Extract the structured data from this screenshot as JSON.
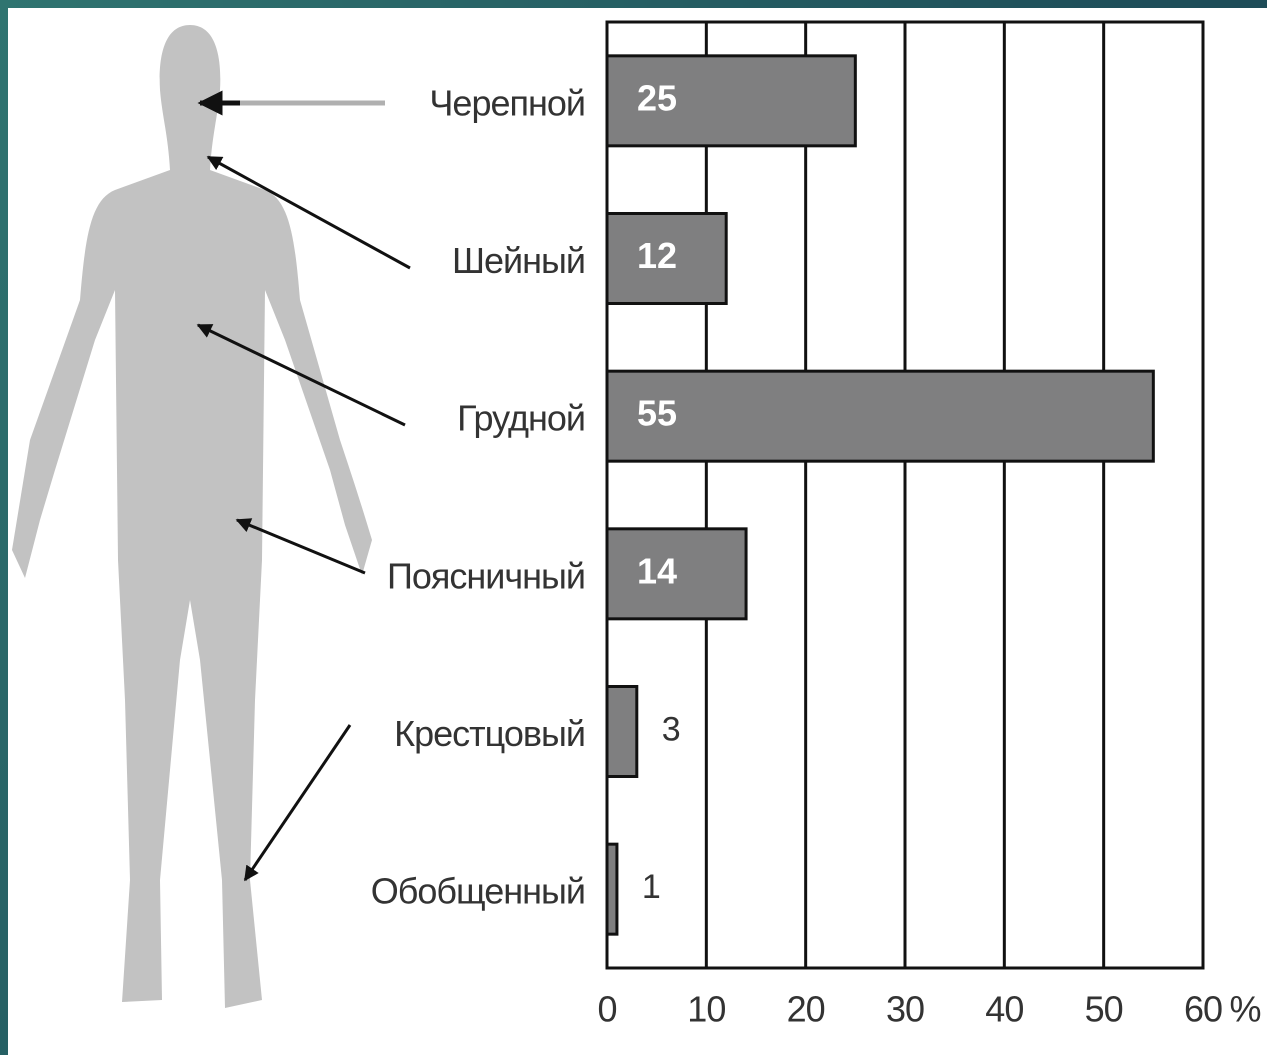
{
  "chart_data": {
    "type": "bar",
    "orientation": "horizontal",
    "categories": [
      "Черепной",
      "Шейный",
      "Грудной",
      "Поясничный",
      "Крестцовый",
      "Обобщенный"
    ],
    "values": [
      25,
      12,
      55,
      14,
      3,
      1
    ],
    "color": "#7f7f80",
    "x_label": "%",
    "xlim": [
      0,
      60
    ],
    "xticks": [
      0,
      10,
      20,
      30,
      40,
      50,
      60
    ],
    "grid": true
  }
}
